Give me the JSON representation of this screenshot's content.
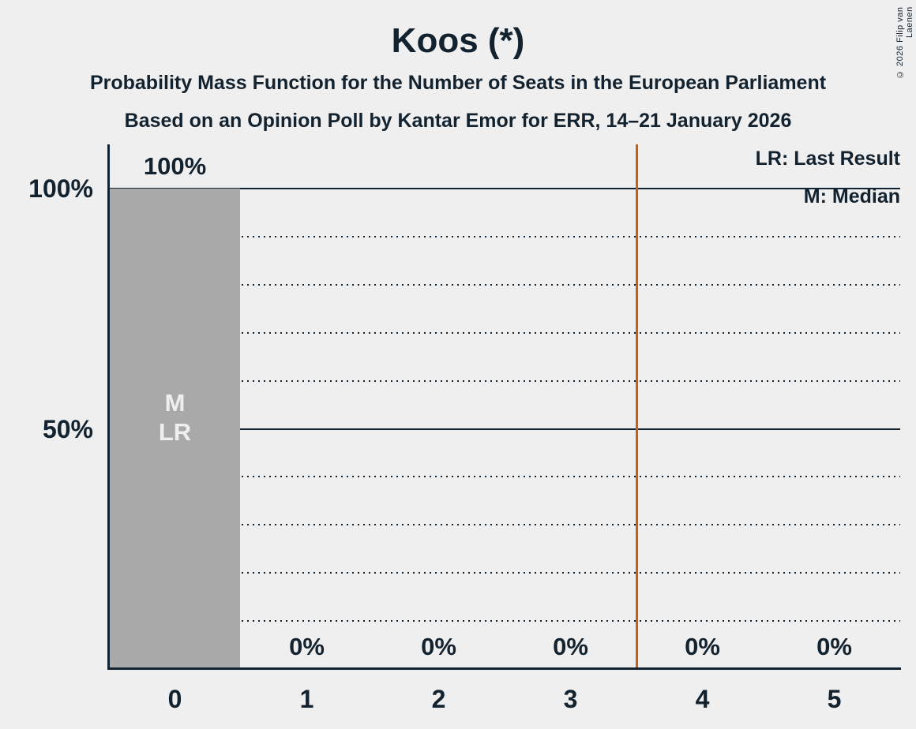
{
  "page": {
    "copyright": "© 2026 Filip van Laenen"
  },
  "colors": {
    "background": "#efefef",
    "text": "#12222f",
    "bar": "#a9a9a9",
    "bar_annotation_text": "#efefef",
    "vertical_line": "#c4600f",
    "gridline": "#12222f"
  },
  "chart_data": {
    "type": "bar",
    "title": "Koos (*)",
    "subtitle": "Probability Mass Function for the Number of Seats in the European Parliament",
    "source_line": "Based on an Opinion Poll by Kantar Emor for ERR, 14–21 January 2026",
    "xlabel": "",
    "ylabel": "",
    "categories": [
      "0",
      "1",
      "2",
      "3",
      "4",
      "5"
    ],
    "values": [
      100,
      0,
      0,
      0,
      0,
      0
    ],
    "bar_value_labels": [
      "100%",
      "0%",
      "0%",
      "0%",
      "0%",
      "0%"
    ],
    "ylim": [
      0,
      100
    ],
    "y_ticks": [
      {
        "label": "100%",
        "value": 100
      },
      {
        "label": "50%",
        "value": 50
      }
    ],
    "gridlines_pct": [
      10,
      20,
      30,
      40,
      50,
      60,
      70,
      80,
      90,
      100
    ],
    "grid": true,
    "legend_position": "top-right",
    "legend": [
      {
        "label": "LR: Last Result"
      },
      {
        "label": "M: Median"
      }
    ],
    "bar_annotations": [
      {
        "bar_index": 0,
        "lines": [
          "M",
          "LR"
        ]
      }
    ],
    "vertical_line_x": 3.5
  }
}
